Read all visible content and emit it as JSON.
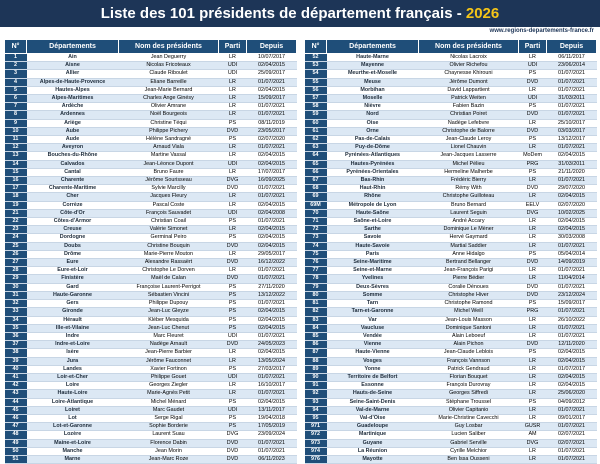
{
  "header": {
    "title": "Liste des 101 présidents de département français -",
    "year": "2026",
    "website": "www.regions-departements-france.fr"
  },
  "columns": [
    "N°",
    "Départements",
    "Nom des présidents",
    "Parti",
    "Depuis"
  ],
  "tables": [
    {
      "rows": [
        [
          "1",
          "Ain",
          "Jean Deguerry",
          "LR",
          "10/07/2017"
        ],
        [
          "2",
          "Aisne",
          "Nicolas Fricoteaux",
          "UDI",
          "02/04/2015"
        ],
        [
          "3",
          "Allier",
          "Claude Riboulet",
          "UDI",
          "25/09/2017"
        ],
        [
          "4",
          "Alpes-de-Haute-Provence",
          "Eliane Barreille",
          "LR",
          "01/07/2021"
        ],
        [
          "5",
          "Hautes-Alpes",
          "Jean-Marie Bernard",
          "LR",
          "02/04/2015"
        ],
        [
          "6",
          "Alpes-Maritimes",
          "Charles Ange Ginésy",
          "LR",
          "15/09/2017"
        ],
        [
          "7",
          "Ardèche",
          "Olivier Amrane",
          "LR",
          "01/07/2021"
        ],
        [
          "8",
          "Ardennes",
          "Noël Bourgeois",
          "LR",
          "01/07/2021"
        ],
        [
          "9",
          "Ariège",
          "Christine Téqui",
          "PS",
          "08/11/2019"
        ],
        [
          "10",
          "Aube",
          "Philippe Pichery",
          "DVD",
          "23/05/2017"
        ],
        [
          "11",
          "Aude",
          "Hélène Sandragné",
          "PS",
          "02/07/2020"
        ],
        [
          "12",
          "Aveyron",
          "Arnaud Viala",
          "LR",
          "01/07/2021"
        ],
        [
          "13",
          "Bouches-du-Rhône",
          "Martine Vassal",
          "LR",
          "02/04/2015"
        ],
        [
          "14",
          "Calvados",
          "Jean-Léonce Dupont",
          "UDI",
          "02/04/2015"
        ],
        [
          "15",
          "Cantal",
          "Bruno Faure",
          "LR",
          "17/07/2017"
        ],
        [
          "16",
          "Charente",
          "Jérôme Sourisseau",
          "DVG",
          "16/09/2025"
        ],
        [
          "17",
          "Charente-Maritime",
          "Sylvie Marcilly",
          "DVD",
          "01/07/2021"
        ],
        [
          "18",
          "Cher",
          "Jacques Fleury",
          "LR",
          "01/07/2021"
        ],
        [
          "19",
          "Corrèze",
          "Pascal Coste",
          "LR",
          "02/04/2015"
        ],
        [
          "21",
          "Côte-d'Or",
          "François Sauvadet",
          "UDI",
          "02/04/2008"
        ],
        [
          "22",
          "Côtes-d'Armor",
          "Christian Coail",
          "PS",
          "01/07/2021"
        ],
        [
          "23",
          "Creuse",
          "Valérie Simonet",
          "LR",
          "02/04/2015"
        ],
        [
          "24",
          "Dordogne",
          "Germinal Peiro",
          "PS",
          "02/04/2015"
        ],
        [
          "25",
          "Doubs",
          "Christine Bouquin",
          "DVD",
          "02/04/2015"
        ],
        [
          "26",
          "Drôme",
          "Marie-Pierre Mouton",
          "LR",
          "29/05/2017"
        ],
        [
          "27",
          "Eure",
          "Alexandre Rassaërt",
          "DVD",
          "16/12/2022"
        ],
        [
          "28",
          "Eure-et-Loir",
          "Christophe Le Dorven",
          "LR",
          "01/07/2021"
        ],
        [
          "29",
          "Finistère",
          "Maël de Calan",
          "DVD",
          "01/07/2021"
        ],
        [
          "30",
          "Gard",
          "Françoise Laurent-Perrigot",
          "PS",
          "27/11/2020"
        ],
        [
          "31",
          "Haute-Garonne",
          "Sébastien Vincini",
          "PS",
          "13/12/2022"
        ],
        [
          "32",
          "Gers",
          "Philippe Dupouy",
          "PS",
          "01/07/2021"
        ],
        [
          "33",
          "Gironde",
          "Jean-Luc Gleyze",
          "PS",
          "02/04/2015"
        ],
        [
          "34",
          "Hérault",
          "Kléber Mesquida",
          "PS",
          "02/04/2015"
        ],
        [
          "35",
          "Ille-et-Vilaine",
          "Jean-Luc Chenut",
          "PS",
          "02/04/2015"
        ],
        [
          "36",
          "Indre",
          "Marc Fleuret",
          "UDI",
          "01/07/2021"
        ],
        [
          "37",
          "Indre-et-Loire",
          "Nadège Arnault",
          "DVD",
          "24/05/2023"
        ],
        [
          "38",
          "Isère",
          "Jean-Pierre Barbier",
          "LR",
          "02/04/2015"
        ],
        [
          "39",
          "Jura",
          "Jérôme Fauconnet",
          "LR",
          "13/05/2024"
        ],
        [
          "40",
          "Landes",
          "Xavier Fortinon",
          "PS",
          "27/03/2017"
        ],
        [
          "41",
          "Loir-et-Cher",
          "Philippe Gouet",
          "UDI",
          "01/07/2021"
        ],
        [
          "42",
          "Loire",
          "Georges Ziegler",
          "LR",
          "16/10/2017"
        ],
        [
          "43",
          "Haute-Loire",
          "Marie-Agnès Petit",
          "LR",
          "01/07/2021"
        ],
        [
          "44",
          "Loire-Atlantique",
          "Michel Ménard",
          "PS",
          "02/04/2015"
        ],
        [
          "45",
          "Loiret",
          "Marc Gaudet",
          "UDI",
          "13/11/2017"
        ],
        [
          "46",
          "Lot",
          "Serge Rigal",
          "PS",
          "19/04/2018"
        ],
        [
          "47",
          "Lot-et-Garonne",
          "Sophie Borderie",
          "PS",
          "17/05/2019"
        ],
        [
          "48",
          "Lozère",
          "Laurent Suau",
          "DVG",
          "23/09/2024"
        ],
        [
          "49",
          "Maine-et-Loire",
          "Florence Dabin",
          "DVD",
          "01/07/2021"
        ],
        [
          "50",
          "Manche",
          "Jean Morin",
          "DVD",
          "01/07/2021"
        ],
        [
          "51",
          "Marne",
          "Jean-Marc Roze",
          "DVD",
          "06/11/2023"
        ]
      ]
    },
    {
      "rows": [
        [
          "52",
          "Haute-Marne",
          "Nicolas Lacroix",
          "LR",
          "06/11/2017"
        ],
        [
          "53",
          "Mayenne",
          "Olivier Richefou",
          "UDI",
          "23/06/2014"
        ],
        [
          "54",
          "Meurthe-et-Moselle",
          "Chaynesse Khirouni",
          "PS",
          "01/07/2021"
        ],
        [
          "55",
          "Meuse",
          "Jérôme Dumont",
          "DVD",
          "01/07/2021"
        ],
        [
          "56",
          "Morbihan",
          "David Lappartient",
          "LR",
          "01/07/2021"
        ],
        [
          "57",
          "Moselle",
          "Patrick Weiten",
          "UDI",
          "31/03/2011"
        ],
        [
          "58",
          "Nièvre",
          "Fabien Bazin",
          "PS",
          "01/07/2021"
        ],
        [
          "59",
          "Nord",
          "Christian Poiret",
          "DVD",
          "01/07/2021"
        ],
        [
          "60",
          "Oise",
          "Nadège Lefebvre",
          "LR",
          "25/10/2017"
        ],
        [
          "61",
          "Orne",
          "Christophe de Balorre",
          "DVD",
          "03/03/2017"
        ],
        [
          "62",
          "Pas-de-Calais",
          "Jean-Claude Leroy",
          "PS",
          "13/12/2017"
        ],
        [
          "63",
          "Puy-de-Dôme",
          "Lionel Chauvin",
          "LR",
          "01/07/2021"
        ],
        [
          "64",
          "Pyrénées-Atlantiques",
          "Jean-Jacques Lasserre",
          "MoDem",
          "02/04/2015"
        ],
        [
          "65",
          "Hautes-Pyrénées",
          "Michel Pélieu",
          "PRG",
          "31/03/2011"
        ],
        [
          "66",
          "Pyrénées-Orientales",
          "Hermeline Malherbe",
          "PS",
          "21/11/2020"
        ],
        [
          "67",
          "Bas-Rhin",
          "Frédéric Bierry",
          "LR",
          "01/07/2021"
        ],
        [
          "68",
          "Haut-Rhin",
          "Rémy With",
          "DVD",
          "29/07/2020"
        ],
        [
          "69",
          "Rhône",
          "Christophe Guilloteau",
          "LR",
          "02/04/2015"
        ],
        [
          "69M",
          "Métropole de Lyon",
          "Bruno Bernard",
          "EELV",
          "02/07/2020"
        ],
        [
          "70",
          "Haute-Saône",
          "Laurent Seguin",
          "DVG",
          "10/02/2025"
        ],
        [
          "71",
          "Saône-et-Loire",
          "André Accary",
          "LR",
          "02/04/2015"
        ],
        [
          "72",
          "Sarthe",
          "Dominique Le Mèner",
          "LR",
          "02/04/2015"
        ],
        [
          "73",
          "Savoie",
          "Hervé Gaymard",
          "LR",
          "30/03/2008"
        ],
        [
          "74",
          "Haute-Savoie",
          "Martial Saddier",
          "LR",
          "01/07/2021"
        ],
        [
          "75",
          "Paris",
          "Anne Hidalgo",
          "PS",
          "05/04/2014"
        ],
        [
          "76",
          "Seine-Maritime",
          "Bertrand Bellanger",
          "DVD",
          "14/09/2019"
        ],
        [
          "77",
          "Seine-et-Marne",
          "Jean-François Parigi",
          "LR",
          "01/07/2021"
        ],
        [
          "78",
          "Yvelines",
          "Pierre Bédier",
          "LR",
          "11/04/2014"
        ],
        [
          "79",
          "Deux-Sèvres",
          "Coralie Dénoues",
          "DVD",
          "01/07/2021"
        ],
        [
          "80",
          "Somme",
          "Christophe Hiver",
          "DVD",
          "23/12/2024"
        ],
        [
          "81",
          "Tarn",
          "Christophe Ramond",
          "PS",
          "15/09/2017"
        ],
        [
          "82",
          "Tarn-et-Garonne",
          "Michel Weill",
          "PRG",
          "01/07/2021"
        ],
        [
          "83",
          "Var",
          "Jean-Louis Masson",
          "LR",
          "26/10/2022"
        ],
        [
          "84",
          "Vaucluse",
          "Dominique Santoni",
          "LR",
          "01/07/2021"
        ],
        [
          "85",
          "Vendée",
          "Alain Leboeuf",
          "LR",
          "01/07/2021"
        ],
        [
          "86",
          "Vienne",
          "Alain Pichon",
          "DVD",
          "12/11/2020"
        ],
        [
          "87",
          "Haute-Vienne",
          "Jean-Claude Leblois",
          "PS",
          "02/04/2015"
        ],
        [
          "88",
          "Vosges",
          "François Vannson",
          "LR",
          "02/04/2015"
        ],
        [
          "89",
          "Yonne",
          "Patrick Gendraud",
          "LR",
          "01/07/2017"
        ],
        [
          "90",
          "Territoire de Belfort",
          "Florian Bouquet",
          "LR",
          "02/04/2015"
        ],
        [
          "91",
          "Essonne",
          "François Durovray",
          "LR",
          "02/04/2015"
        ],
        [
          "92",
          "Hauts-de-Seine",
          "Georges Siffredi",
          "LR",
          "25/06/2020"
        ],
        [
          "93",
          "Seine-Saint-Denis",
          "Stéphane Troussel",
          "PS",
          "04/09/2012"
        ],
        [
          "94",
          "Val-de-Marne",
          "Olivier Capitanio",
          "LR",
          "01/07/2021"
        ],
        [
          "95",
          "Val-d'Oise",
          "Marie-Christine Cavecchi",
          "LR",
          "09/01/2017"
        ],
        [
          "971",
          "Guadeloupe",
          "Guy Losbar",
          "GUSR",
          "01/07/2021"
        ],
        [
          "972",
          "Martinique",
          "Lucien Saliber",
          "AM",
          "02/07/2021"
        ],
        [
          "973",
          "Guyane",
          "Gabriel Serville",
          "DVG",
          "02/07/2021"
        ],
        [
          "974",
          "La Réunion",
          "Cyrille Melchior",
          "LR",
          "01/07/2021"
        ],
        [
          "976",
          "Mayotte",
          "Ben Issa Ousseni",
          "LR",
          "01/07/2021"
        ]
      ]
    }
  ]
}
